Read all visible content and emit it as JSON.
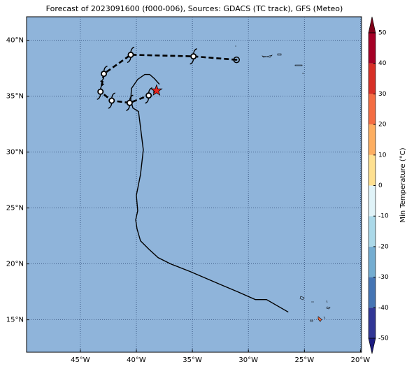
{
  "chart_data": {
    "type": "map",
    "title": "Forecast of 2023091600 (f000-006), Sources: GDACS (TC track), GFS (Meteo)",
    "xlim": [
      -49.8,
      -19.9
    ],
    "ylim": [
      12.1,
      42.1
    ],
    "xticks": [
      {
        "value": -45,
        "label": "45°W"
      },
      {
        "value": -40,
        "label": "40°W"
      },
      {
        "value": -35,
        "label": "35°W"
      },
      {
        "value": -30,
        "label": "30°W"
      },
      {
        "value": -25,
        "label": "25°W"
      },
      {
        "value": -20,
        "label": "20°W"
      }
    ],
    "yticks": [
      {
        "value": 15,
        "label": "15°N"
      },
      {
        "value": 20,
        "label": "20°N"
      },
      {
        "value": 25,
        "label": "25°N"
      },
      {
        "value": 30,
        "label": "30°N"
      },
      {
        "value": 35,
        "label": "35°N"
      },
      {
        "value": 40,
        "label": "40°N"
      }
    ],
    "grid": true,
    "ocean_color": "#8fb4da",
    "colorbar": {
      "label": "Min Temperature (°C)",
      "ticks": [
        -50,
        -40,
        -30,
        -20,
        -10,
        0,
        10,
        20,
        30,
        40,
        50
      ],
      "colors": [
        "#313695",
        "#4575b4",
        "#74add1",
        "#abd9e9",
        "#e0f3f8",
        "#fee090",
        "#fdae61",
        "#f46d43",
        "#d73027",
        "#a50026"
      ],
      "under_color": "#1a1a80",
      "over_color": "#7f0019"
    },
    "series": [
      {
        "name": "TC track",
        "color": "#000000",
        "lon": [
          -31.06,
          -34.9,
          -40.5,
          -42.9,
          -43.2,
          -42.2,
          -40.6,
          -38.9,
          -38.2
        ],
        "lat": [
          38.25,
          38.56,
          38.7,
          37.0,
          35.4,
          34.6,
          34.4,
          35.06,
          35.5
        ]
      },
      {
        "name": "path",
        "color": "#000000",
        "lon": [
          -26.44,
          -28.38,
          -29.38,
          -30.94,
          -32.44,
          -35.19,
          -36.94,
          -38.06,
          -38.88,
          -39.63,
          -39.94,
          -40.06,
          -39.88,
          -40.0,
          -39.63,
          -39.38,
          -39.69,
          -39.81,
          -40.31,
          -40.5,
          -40.44,
          -39.88,
          -39.25,
          -38.81,
          -38.38,
          -37.94
        ],
        "lat": [
          15.69,
          16.81,
          16.81,
          17.5,
          18.13,
          19.31,
          20.0,
          20.56,
          21.31,
          22.06,
          23.13,
          23.94,
          24.75,
          26.13,
          28.0,
          30.19,
          32.69,
          33.63,
          33.94,
          34.69,
          35.69,
          36.5,
          36.94,
          36.94,
          36.56,
          36.06
        ]
      }
    ]
  }
}
